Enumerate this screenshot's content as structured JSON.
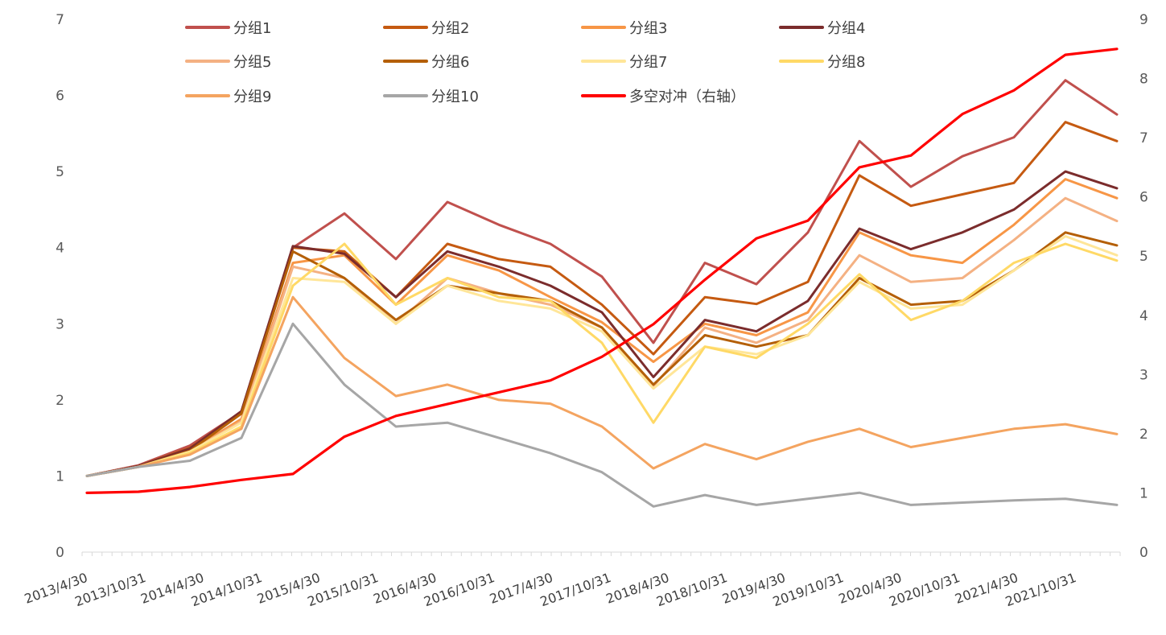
{
  "chart_data": {
    "type": "line",
    "title": "",
    "x_tick_labels": [
      "2013/4/30",
      "2013/10/31",
      "2014/4/30",
      "2014/10/31",
      "2015/4/30",
      "2015/10/31",
      "2016/4/30",
      "2016/10/31",
      "2017/4/30",
      "2017/10/31",
      "2018/4/30",
      "2018/10/31",
      "2019/4/30",
      "2019/10/31",
      "2020/4/30",
      "2020/10/31",
      "2021/4/30",
      "2021/10/31"
    ],
    "left_axis": {
      "ylim": [
        0,
        7
      ],
      "ticks": [
        "0",
        "1",
        "2",
        "3",
        "4",
        "5",
        "6",
        "7"
      ]
    },
    "right_axis": {
      "ylim": [
        0,
        9
      ],
      "ticks": [
        "0",
        "1",
        "2",
        "3",
        "4",
        "5",
        "6",
        "7",
        "8",
        "9"
      ]
    },
    "legend": [
      {
        "name": "分组1",
        "color": "#c0504d"
      },
      {
        "name": "分组2",
        "color": "#c55a11"
      },
      {
        "name": "分组3",
        "color": "#f79646"
      },
      {
        "name": "分组4",
        "color": "#7b2c2c"
      },
      {
        "name": "分组5",
        "color": "#f4b183"
      },
      {
        "name": "分组6",
        "color": "#b45f06"
      },
      {
        "name": "分组7",
        "color": "#ffe699"
      },
      {
        "name": "分组8",
        "color": "#ffd966"
      },
      {
        "name": "分组9",
        "color": "#f4a460"
      },
      {
        "name": "分组10",
        "color": "#a6a6a6"
      },
      {
        "name": "多空对冲（右轴）",
        "color": "#ff0000"
      }
    ],
    "series": [
      {
        "name": "分组1",
        "axis": "left",
        "values": [
          1.0,
          1.14,
          1.4,
          1.84,
          4.0,
          4.45,
          3.85,
          4.6,
          4.3,
          4.05,
          3.62,
          2.75,
          3.8,
          3.52,
          4.2,
          5.4,
          4.8,
          5.2,
          5.45,
          6.2,
          5.75
        ]
      },
      {
        "name": "分组2",
        "axis": "left",
        "values": [
          1.0,
          1.13,
          1.37,
          1.82,
          4.0,
          3.95,
          3.35,
          4.05,
          3.85,
          3.75,
          3.25,
          2.6,
          3.35,
          3.26,
          3.55,
          4.95,
          4.55,
          4.7,
          4.85,
          5.65,
          5.4
        ]
      },
      {
        "name": "分组3",
        "axis": "left",
        "values": [
          1.0,
          1.12,
          1.33,
          1.75,
          3.8,
          3.9,
          3.25,
          3.9,
          3.7,
          3.35,
          3.02,
          2.5,
          3.0,
          2.85,
          3.15,
          4.2,
          3.9,
          3.8,
          4.3,
          4.9,
          4.65
        ]
      },
      {
        "name": "分组4",
        "axis": "left",
        "values": [
          1.0,
          1.13,
          1.36,
          1.85,
          4.02,
          3.92,
          3.35,
          3.95,
          3.75,
          3.5,
          3.15,
          2.3,
          3.05,
          2.9,
          3.3,
          4.25,
          3.98,
          4.2,
          4.5,
          5.0,
          4.78
        ]
      },
      {
        "name": "分组5",
        "axis": "left",
        "values": [
          1.0,
          1.12,
          1.32,
          1.72,
          3.75,
          3.6,
          3.0,
          3.6,
          3.4,
          3.25,
          2.95,
          2.18,
          2.95,
          2.75,
          3.05,
          3.9,
          3.55,
          3.6,
          4.1,
          4.65,
          4.35
        ]
      },
      {
        "name": "分组6",
        "axis": "left",
        "values": [
          1.0,
          1.12,
          1.33,
          1.82,
          3.95,
          3.6,
          3.05,
          3.5,
          3.4,
          3.3,
          2.95,
          2.2,
          2.85,
          2.7,
          2.85,
          3.6,
          3.25,
          3.3,
          3.7,
          4.2,
          4.03
        ]
      },
      {
        "name": "分组7",
        "axis": "left",
        "values": [
          1.0,
          1.12,
          1.32,
          1.7,
          3.6,
          3.55,
          3.0,
          3.5,
          3.3,
          3.2,
          2.9,
          2.15,
          2.7,
          2.6,
          2.85,
          3.55,
          3.2,
          3.25,
          3.7,
          4.15,
          3.9
        ]
      },
      {
        "name": "分组8",
        "axis": "left",
        "values": [
          1.0,
          1.12,
          1.3,
          1.65,
          3.5,
          4.05,
          3.25,
          3.6,
          3.35,
          3.3,
          2.75,
          1.7,
          2.7,
          2.55,
          3.0,
          3.65,
          3.05,
          3.3,
          3.8,
          4.05,
          3.83
        ]
      },
      {
        "name": "分组9",
        "axis": "left",
        "values": [
          1.0,
          1.12,
          1.28,
          1.62,
          3.35,
          2.55,
          2.05,
          2.2,
          2.0,
          1.95,
          1.65,
          1.1,
          1.42,
          1.22,
          1.45,
          1.62,
          1.38,
          1.5,
          1.62,
          1.68,
          1.55
        ]
      },
      {
        "name": "分组10",
        "axis": "left",
        "values": [
          1.0,
          1.12,
          1.2,
          1.5,
          3.0,
          2.2,
          1.65,
          1.7,
          1.5,
          1.3,
          1.05,
          0.6,
          0.75,
          0.62,
          0.7,
          0.78,
          0.62,
          0.65,
          0.68,
          0.7,
          0.62
        ]
      },
      {
        "name": "多空对冲（右轴）",
        "axis": "right",
        "values": [
          1.0,
          1.02,
          1.1,
          1.22,
          1.32,
          1.95,
          2.3,
          2.5,
          2.7,
          2.9,
          3.3,
          3.85,
          4.6,
          5.3,
          5.6,
          6.5,
          6.7,
          7.4,
          7.8,
          8.4,
          8.5
        ]
      }
    ]
  }
}
